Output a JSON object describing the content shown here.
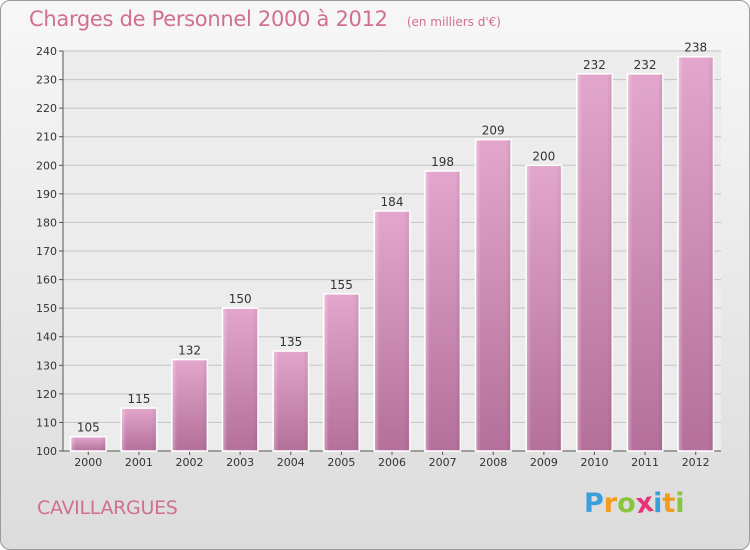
{
  "chart_data": {
    "type": "bar",
    "title": "Charges de Personnel 2000 à 2012",
    "subtitle": "(en milliers d'€)",
    "categories": [
      "2000",
      "2001",
      "2002",
      "2003",
      "2004",
      "2005",
      "2006",
      "2007",
      "2008",
      "2009",
      "2010",
      "2011",
      "2012"
    ],
    "values": [
      105,
      115,
      132,
      150,
      135,
      155,
      184,
      198,
      209,
      200,
      232,
      232,
      238
    ],
    "ylim": [
      100,
      240
    ],
    "yticks": [
      100,
      110,
      120,
      130,
      140,
      150,
      160,
      170,
      180,
      190,
      200,
      210,
      220,
      230,
      240
    ],
    "grid": true,
    "bar_color": "#d98fb8"
  },
  "commune": "CAVILLARGUES",
  "logo": {
    "letters": [
      "P",
      "r",
      "o",
      "x",
      "i",
      "t",
      "i"
    ],
    "colors": [
      "#3aa0dc",
      "#f39c1e",
      "#8ac53f",
      "#e8327a",
      "#3aa0dc",
      "#f39c1e",
      "#8ac53f"
    ]
  }
}
